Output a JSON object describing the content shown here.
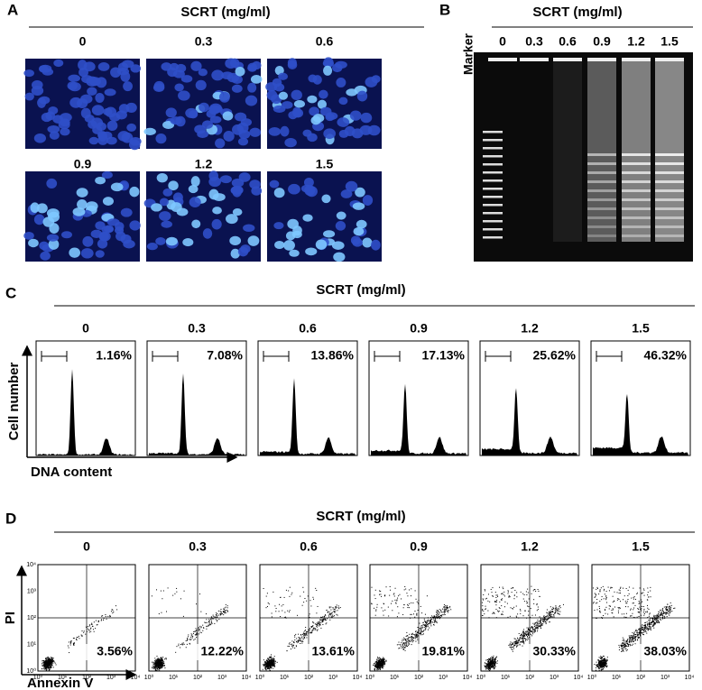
{
  "figure": {
    "panel_a": {
      "label": "A",
      "title": "SCRT (mg/ml)",
      "doses": [
        "0",
        "0.3",
        "0.6",
        "0.9",
        "1.2",
        "1.5"
      ]
    },
    "panel_b": {
      "label": "B",
      "title": "SCRT (mg/ml)",
      "lane_label": "Marker",
      "doses": [
        "0",
        "0.3",
        "0.6",
        "0.9",
        "1.2",
        "1.5"
      ]
    },
    "panel_c": {
      "label": "C",
      "title": "SCRT (mg/ml)",
      "doses": [
        "0",
        "0.3",
        "0.6",
        "0.9",
        "1.2",
        "1.5"
      ],
      "percentages": [
        "1.16%",
        "7.08%",
        "13.86%",
        "17.13%",
        "25.62%",
        "46.32%"
      ],
      "y_axis": "Cell number",
      "x_axis": "DNA content"
    },
    "panel_d": {
      "label": "D",
      "title": "SCRT (mg/ml)",
      "doses": [
        "0",
        "0.3",
        "0.6",
        "0.9",
        "1.2",
        "1.5"
      ],
      "percentages": [
        "3.56%",
        "12.22%",
        "13.61%",
        "19.81%",
        "30.33%",
        "38.03%"
      ],
      "y_axis": "PI",
      "x_axis": "Annexin V",
      "ticks": [
        "10⁰",
        "10¹",
        "10²",
        "10³",
        "10⁴"
      ]
    }
  }
}
